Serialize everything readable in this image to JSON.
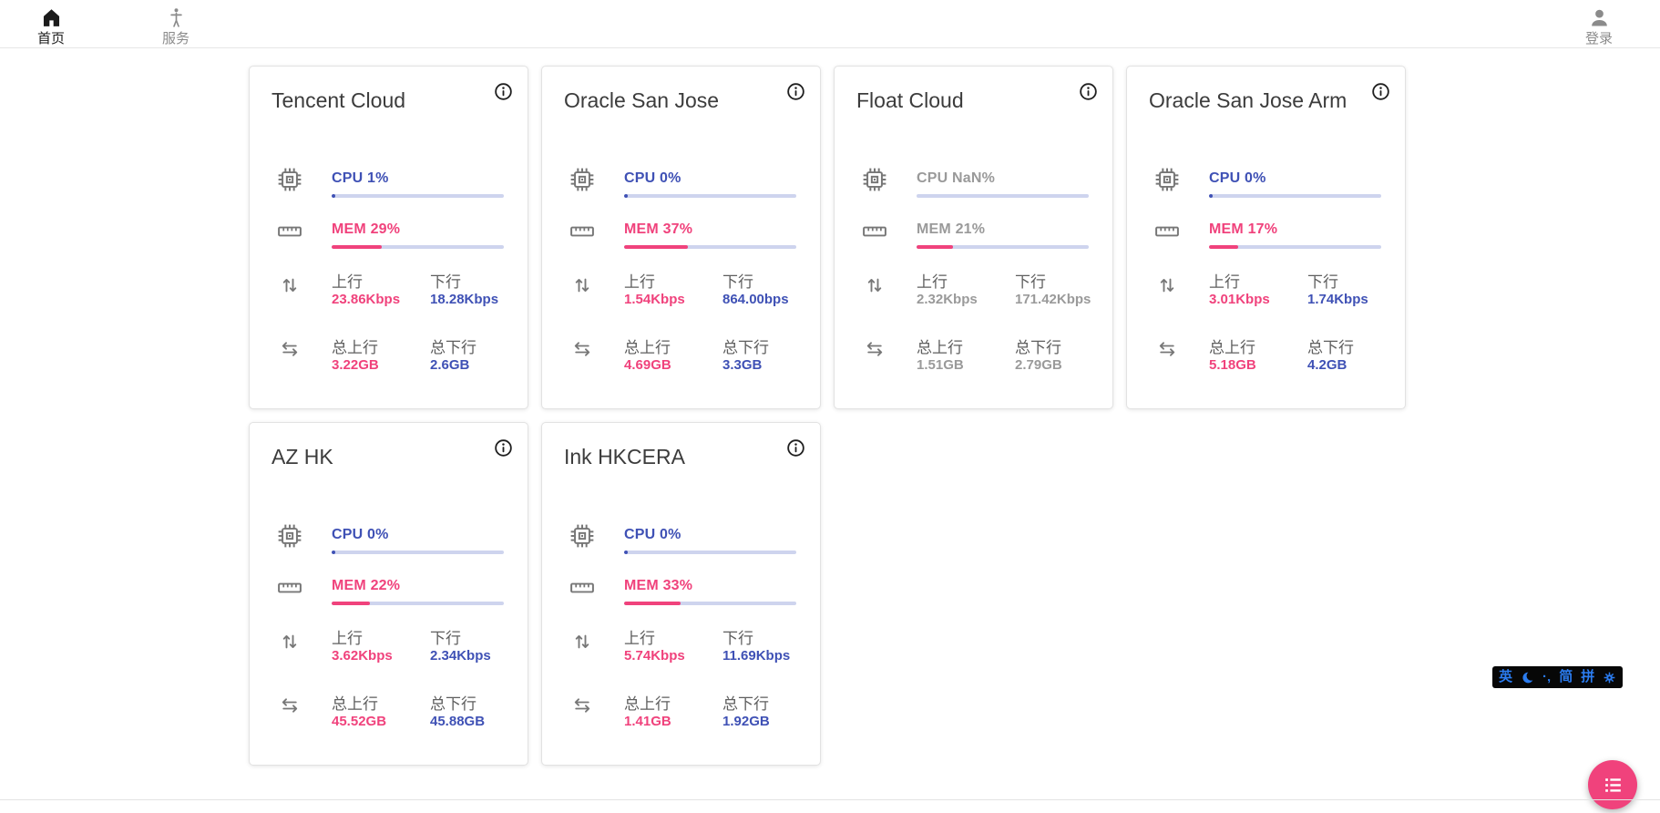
{
  "colors": {
    "accent_pink": "#f0427c",
    "accent_indigo": "#3f51b5",
    "bar_track": "#ced4ee",
    "ime_blue": "#2b7cf0"
  },
  "nav": {
    "home": {
      "label": "首页"
    },
    "service": {
      "label": "服务"
    },
    "login": {
      "label": "登录"
    }
  },
  "labels": {
    "up": "上行",
    "down": "下行",
    "total_up": "总上行",
    "total_down": "总下行"
  },
  "servers": [
    {
      "name": "Tencent Cloud",
      "cpu_text": "CPU 1%",
      "cpu_pct": 1,
      "mem_text": "MEM 29%",
      "mem_pct": 29,
      "muted": false,
      "up": "23.86Kbps",
      "down": "18.28Kbps",
      "total_up": "3.22GB",
      "total_down": "2.6GB"
    },
    {
      "name": "Oracle San Jose",
      "cpu_text": "CPU 0%",
      "cpu_pct": 0,
      "mem_text": "MEM 37%",
      "mem_pct": 37,
      "muted": false,
      "up": "1.54Kbps",
      "down": "864.00bps",
      "total_up": "4.69GB",
      "total_down": "3.3GB"
    },
    {
      "name": "Float Cloud",
      "cpu_text": "CPU NaN%",
      "cpu_pct": null,
      "mem_text": "MEM 21%",
      "mem_pct": 21,
      "muted": true,
      "up": "2.32Kbps",
      "down": "171.42Kbps",
      "total_up": "1.51GB",
      "total_down": "2.79GB"
    },
    {
      "name": "Oracle San Jose Arm",
      "cpu_text": "CPU 0%",
      "cpu_pct": 0,
      "mem_text": "MEM 17%",
      "mem_pct": 17,
      "muted": false,
      "up": "3.01Kbps",
      "down": "1.74Kbps",
      "total_up": "5.18GB",
      "total_down": "4.2GB"
    },
    {
      "name": "AZ HK",
      "cpu_text": "CPU 0%",
      "cpu_pct": 0,
      "mem_text": "MEM 22%",
      "mem_pct": 22,
      "muted": false,
      "up": "3.62Kbps",
      "down": "2.34Kbps",
      "total_up": "45.52GB",
      "total_down": "45.88GB"
    },
    {
      "name": "Ink HKCERA",
      "cpu_text": "CPU 0%",
      "cpu_pct": 0,
      "mem_text": "MEM 33%",
      "mem_pct": 33,
      "muted": false,
      "up": "5.74Kbps",
      "down": "11.69Kbps",
      "total_up": "1.41GB",
      "total_down": "1.92GB"
    }
  ],
  "ime": {
    "english": "英",
    "punct": "·‚",
    "simplified": "简",
    "pinyin": "拼"
  }
}
